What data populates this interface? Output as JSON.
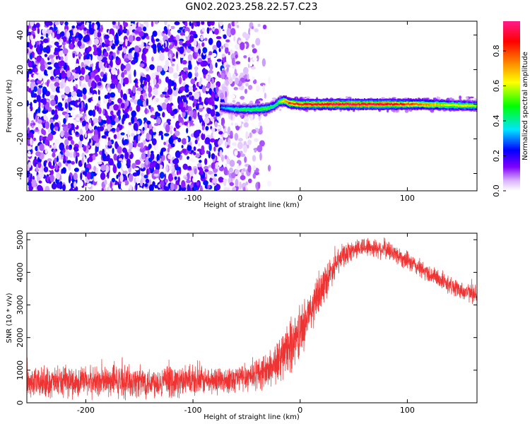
{
  "title": "GN02.2023.258.22.57.C23",
  "colors": {
    "snr_line": "#ee3333",
    "colormap": [
      "#ffffff",
      "#8000ff",
      "#0000ff",
      "#00e5ff",
      "#00ff00",
      "#ffff00",
      "#ff8000",
      "#ff0000",
      "#ff1a8c"
    ]
  },
  "chart_data": [
    {
      "type": "heatmap",
      "name": "spectrogram",
      "xlabel": "Height of straight line (km)",
      "ylabel": "Frequency (Hz)",
      "xlim": [
        -255,
        165
      ],
      "ylim": [
        -50,
        48
      ],
      "xticks": [
        -200,
        -100,
        0,
        100
      ],
      "yticks": [
        -40,
        -20,
        0,
        20,
        40
      ],
      "colorbar": {
        "label": "Normalized spectral amplitude",
        "range": [
          0,
          0.97
        ],
        "ticks": [
          "0.0",
          "0.2",
          "0.4",
          "0.6",
          "0.8"
        ]
      },
      "noise_region_x": [
        -255,
        -70
      ],
      "noise_fade_x": [
        -70,
        -25
      ],
      "signal_trace": [
        {
          "x": -75,
          "freq": -2,
          "amp": 0.3
        },
        {
          "x": -60,
          "freq": -3,
          "amp": 0.45
        },
        {
          "x": -45,
          "freq": -3,
          "amp": 0.5
        },
        {
          "x": -32,
          "freq": -2.5,
          "amp": 0.55
        },
        {
          "x": -25,
          "freq": -1,
          "amp": 0.45
        },
        {
          "x": -20,
          "freq": 1.5,
          "amp": 0.55
        },
        {
          "x": -15,
          "freq": 2,
          "amp": 0.75
        },
        {
          "x": -10,
          "freq": 0.5,
          "amp": 0.85
        },
        {
          "x": 0,
          "freq": 0,
          "amp": 0.9
        },
        {
          "x": 40,
          "freq": 0,
          "amp": 0.97
        },
        {
          "x": 80,
          "freq": 0,
          "amp": 0.95
        },
        {
          "x": 110,
          "freq": 0,
          "amp": 0.8
        },
        {
          "x": 140,
          "freq": -0.5,
          "amp": 0.65
        },
        {
          "x": 165,
          "freq": -1,
          "amp": 0.6
        }
      ]
    },
    {
      "type": "line",
      "name": "snr",
      "xlabel": "Height of straight line (km)",
      "ylabel": "SNR (10 * v/v)",
      "xlim": [
        -255,
        165
      ],
      "ylim": [
        0,
        5200
      ],
      "xticks": [
        -200,
        -100,
        0,
        100
      ],
      "yticks": [
        0,
        1000,
        2000,
        3000,
        4000,
        5000
      ],
      "series": [
        {
          "x": [
            -255,
            -200,
            -150,
            -100,
            -70,
            -50,
            -30,
            -20,
            -10,
            0,
            10,
            20,
            30,
            40,
            50,
            60,
            70,
            80,
            90,
            100,
            110,
            120,
            130,
            140,
            150,
            165
          ],
          "y": [
            600,
            650,
            650,
            650,
            700,
            800,
            1000,
            1300,
            1700,
            2200,
            2800,
            3500,
            4100,
            4500,
            4700,
            4800,
            4750,
            4700,
            4550,
            4350,
            4150,
            3950,
            3800,
            3600,
            3450,
            3300
          ],
          "noise": [
            450,
            480,
            500,
            450,
            400,
            450,
            550,
            700,
            800,
            800,
            700,
            600,
            450,
            350,
            300,
            300,
            300,
            300,
            300,
            280,
            280,
            280,
            280,
            280,
            280,
            280
          ]
        }
      ]
    }
  ]
}
